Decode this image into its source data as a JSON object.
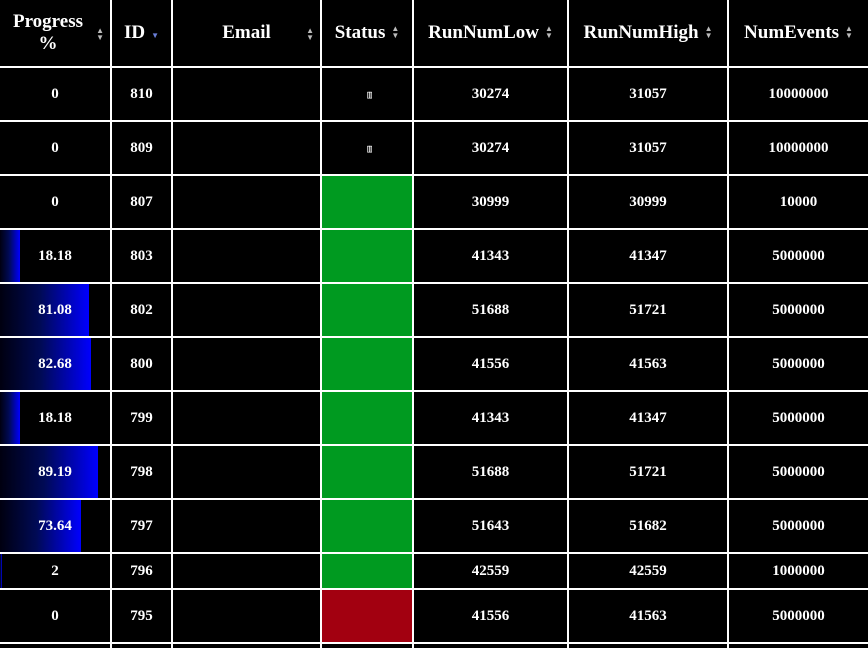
{
  "colors": {
    "progress_bar": "#0000ff",
    "status_ok": "#009a20",
    "status_error": "#a20010",
    "sort_active": "#6a7fd8"
  },
  "table": {
    "columns": [
      {
        "key": "progress",
        "label": "Progress %",
        "sort": "none"
      },
      {
        "key": "id",
        "label": "ID",
        "sort": "desc"
      },
      {
        "key": "email",
        "label": "Email",
        "sort": "none"
      },
      {
        "key": "status",
        "label": "Status",
        "sort": "none"
      },
      {
        "key": "run_num_low",
        "label": "RunNumLow",
        "sort": "none"
      },
      {
        "key": "run_num_high",
        "label": "RunNumHigh",
        "sort": "none"
      },
      {
        "key": "num_events",
        "label": "NumEvents",
        "sort": "none"
      }
    ],
    "rows": [
      {
        "progress": "0",
        "progress_fraction": 0,
        "id": "810",
        "email": "",
        "status": "glyph",
        "status_glyph": "▯▯",
        "run_num_low": "30274",
        "run_num_high": "31057",
        "num_events": "10000000"
      },
      {
        "progress": "0",
        "progress_fraction": 0,
        "id": "809",
        "email": "",
        "status": "glyph",
        "status_glyph": "▯▯",
        "run_num_low": "30274",
        "run_num_high": "31057",
        "num_events": "10000000"
      },
      {
        "progress": "0",
        "progress_fraction": 0,
        "id": "807",
        "email": "",
        "status": "green",
        "run_num_low": "30999",
        "run_num_high": "30999",
        "num_events": "10000"
      },
      {
        "progress": "18.18",
        "progress_fraction": 0.1818,
        "id": "803",
        "email": "",
        "status": "green",
        "run_num_low": "41343",
        "run_num_high": "41347",
        "num_events": "5000000"
      },
      {
        "progress": "81.08",
        "progress_fraction": 0.8108,
        "id": "802",
        "email": "",
        "status": "green",
        "run_num_low": "51688",
        "run_num_high": "51721",
        "num_events": "5000000"
      },
      {
        "progress": "82.68",
        "progress_fraction": 0.8268,
        "id": "800",
        "email": "",
        "status": "green",
        "run_num_low": "41556",
        "run_num_high": "41563",
        "num_events": "5000000"
      },
      {
        "progress": "18.18",
        "progress_fraction": 0.1818,
        "id": "799",
        "email": "",
        "status": "green",
        "run_num_low": "41343",
        "run_num_high": "41347",
        "num_events": "5000000"
      },
      {
        "progress": "89.19",
        "progress_fraction": 0.8919,
        "id": "798",
        "email": "",
        "status": "green",
        "run_num_low": "51688",
        "run_num_high": "51721",
        "num_events": "5000000"
      },
      {
        "progress": "73.64",
        "progress_fraction": 0.7364,
        "id": "797",
        "email": "",
        "status": "green",
        "run_num_low": "51643",
        "run_num_high": "51682",
        "num_events": "5000000"
      },
      {
        "progress": "2",
        "progress_fraction": 0.02,
        "id": "796",
        "email": "",
        "status": "green",
        "run_num_low": "42559",
        "run_num_high": "42559",
        "num_events": "1000000",
        "short": true
      },
      {
        "progress": "0",
        "progress_fraction": 0,
        "id": "795",
        "email": "",
        "status": "red",
        "run_num_low": "41556",
        "run_num_high": "41563",
        "num_events": "5000000"
      }
    ]
  }
}
